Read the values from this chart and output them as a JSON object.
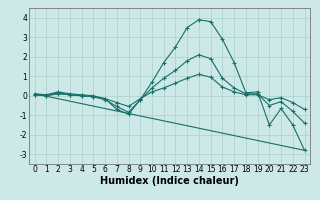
{
  "xlabel": "Humidex (Indice chaleur)",
  "xlim": [
    -0.5,
    23.5
  ],
  "ylim": [
    -3.5,
    4.5
  ],
  "background_color": "#cce9e8",
  "grid_color": "#aacfce",
  "line_color": "#1a6e68",
  "lines": [
    {
      "x": [
        0,
        1,
        2,
        3,
        4,
        5,
        6,
        7,
        8,
        9,
        10,
        11,
        12,
        13,
        14,
        15,
        16,
        17,
        18,
        19,
        20,
        21,
        22,
        23
      ],
      "y": [
        0.1,
        0.05,
        0.2,
        0.1,
        0.05,
        0.0,
        -0.15,
        -0.7,
        -0.95,
        -0.2,
        0.7,
        1.7,
        2.5,
        3.5,
        3.9,
        3.8,
        2.9,
        1.7,
        0.15,
        0.2,
        -1.5,
        -0.65,
        -1.5,
        -2.8
      ]
    },
    {
      "x": [
        0,
        1,
        2,
        3,
        4,
        5,
        6,
        7,
        8,
        9,
        10,
        11,
        12,
        13,
        14,
        15,
        16,
        17,
        18,
        19,
        20,
        21,
        22,
        23
      ],
      "y": [
        0.05,
        0.0,
        0.15,
        0.05,
        0.0,
        -0.05,
        -0.2,
        -0.55,
        -0.85,
        -0.2,
        0.4,
        0.9,
        1.3,
        1.8,
        2.1,
        1.9,
        0.9,
        0.4,
        0.1,
        0.1,
        -0.5,
        -0.3,
        -0.8,
        -1.4
      ]
    },
    {
      "x": [
        0,
        1,
        2,
        3,
        4,
        5,
        6,
        7,
        8,
        9,
        10,
        11,
        12,
        13,
        14,
        15,
        16,
        17,
        18,
        19,
        20,
        21,
        22,
        23
      ],
      "y": [
        0.05,
        0.0,
        0.1,
        0.05,
        0.0,
        -0.05,
        -0.15,
        -0.35,
        -0.55,
        -0.15,
        0.2,
        0.4,
        0.65,
        0.9,
        1.1,
        0.95,
        0.45,
        0.2,
        0.05,
        0.05,
        -0.2,
        -0.1,
        -0.35,
        -0.7
      ]
    },
    {
      "x": [
        0,
        23
      ],
      "y": [
        0.1,
        -2.8
      ]
    }
  ],
  "xticks": [
    0,
    1,
    2,
    3,
    4,
    5,
    6,
    7,
    8,
    9,
    10,
    11,
    12,
    13,
    14,
    15,
    16,
    17,
    18,
    19,
    20,
    21,
    22,
    23
  ],
  "yticks": [
    -3,
    -2,
    -1,
    0,
    1,
    2,
    3,
    4
  ],
  "tick_fontsize": 5.5,
  "label_fontsize": 7.0
}
